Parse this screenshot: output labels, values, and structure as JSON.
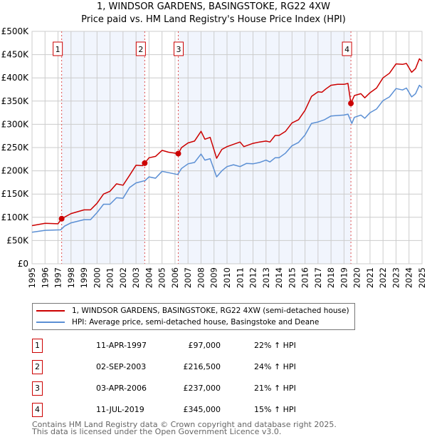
{
  "title": "1, WINDSOR GARDENS, BASINGSTOKE, RG22 4XW",
  "subtitle": "Price paid vs. HM Land Registry's House Price Index (HPI)",
  "chart_data": {
    "type": "line",
    "title": "1, WINDSOR GARDENS, BASINGSTOKE, RG22 4XW",
    "subtitle": "Price paid vs. HM Land Registry's House Price Index (HPI)",
    "xlim": [
      1995,
      2025
    ],
    "ylim": [
      0,
      500000
    ],
    "x_ticks": [
      "1995",
      "1996",
      "1997",
      "1998",
      "1999",
      "2000",
      "2001",
      "2002",
      "2003",
      "2004",
      "2005",
      "2006",
      "2007",
      "2008",
      "2009",
      "2010",
      "2011",
      "2012",
      "2013",
      "2014",
      "2015",
      "2016",
      "2017",
      "2018",
      "2019",
      "2020",
      "2021",
      "2022",
      "2023",
      "2024",
      "2025"
    ],
    "y_ticks": [
      {
        "v": 0,
        "label": "£0"
      },
      {
        "v": 50000,
        "label": "£50K"
      },
      {
        "v": 100000,
        "label": "£100K"
      },
      {
        "v": 150000,
        "label": "£150K"
      },
      {
        "v": 200000,
        "label": "£200K"
      },
      {
        "v": 250000,
        "label": "£250K"
      },
      {
        "v": 300000,
        "label": "£300K"
      },
      {
        "v": 350000,
        "label": "£350K"
      },
      {
        "v": 400000,
        "label": "£400K"
      },
      {
        "v": 450000,
        "label": "£450K"
      },
      {
        "v": 500000,
        "label": "£500K"
      }
    ],
    "grid": true,
    "series": [
      {
        "name": "1, WINDSOR GARDENS, BASINGSTOKE, RG22 4XW (semi-detached house)",
        "color": "#cc0000",
        "x": [
          1995,
          1996,
          1997,
          1997.28,
          1998,
          1999,
          1999.5,
          2000,
          2000.5,
          2001,
          2001.5,
          2002,
          2002.5,
          2003,
          2003.5,
          2003.67,
          2004,
          2004.5,
          2005,
          2005.5,
          2006.25,
          2006.5,
          2007,
          2007.5,
          2008,
          2008.3,
          2008.7,
          2009.2,
          2009.6,
          2010,
          2010.5,
          2011,
          2011.3,
          2012,
          2012.5,
          2013,
          2013.3,
          2013.7,
          2014,
          2014.5,
          2015,
          2015.5,
          2016,
          2016.5,
          2017,
          2017.3,
          2017.6,
          2018,
          2018.5,
          2019,
          2019.3,
          2019.53,
          2019.8,
          2020.3,
          2020.6,
          2021,
          2021.5,
          2022,
          2022.5,
          2023,
          2023.5,
          2023.8,
          2024.2,
          2024.5,
          2024.8,
          2025
        ],
        "y": [
          82000,
          87000,
          86000,
          97000,
          108000,
          116000,
          116000,
          130000,
          150000,
          156000,
          172000,
          169000,
          190000,
          212000,
          211000,
          216500,
          228000,
          231000,
          244000,
          240000,
          237000,
          250000,
          260000,
          264000,
          285000,
          268000,
          272000,
          227000,
          246000,
          252000,
          257000,
          262000,
          252000,
          259000,
          262000,
          264000,
          262000,
          276000,
          276000,
          285000,
          303000,
          310000,
          330000,
          360000,
          370000,
          369000,
          376000,
          384000,
          386000,
          386000,
          388000,
          345000,
          362000,
          366000,
          357000,
          368000,
          378000,
          400000,
          410000,
          430000,
          429000,
          431000,
          412000,
          420000,
          441000,
          436000
        ]
      },
      {
        "name": "HPI: Average price, semi-detached house, Basingstoke and Deane",
        "color": "#5b8fd4",
        "x": [
          1995,
          1996,
          1997.2,
          1997.5,
          1998,
          1999,
          1999.5,
          2000,
          2000.5,
          2001,
          2001.5,
          2002,
          2002.5,
          2003,
          2003.7,
          2004,
          2004.5,
          2005,
          2005.5,
          2006.2,
          2006.5,
          2007,
          2007.5,
          2008,
          2008.3,
          2008.7,
          2009.2,
          2009.6,
          2010,
          2010.5,
          2011,
          2011.5,
          2012,
          2012.5,
          2013,
          2013.3,
          2013.7,
          2014,
          2014.5,
          2015,
          2015.5,
          2016,
          2016.5,
          2017,
          2017.5,
          2018,
          2018.5,
          2019,
          2019.3,
          2019.6,
          2019.8,
          2020.3,
          2020.6,
          2021,
          2021.5,
          2022,
          2022.5,
          2023,
          2023.5,
          2023.8,
          2024.2,
          2024.5,
          2024.8,
          2025
        ],
        "y": [
          68000,
          72000,
          73000,
          81000,
          88000,
          95000,
          95000,
          110000,
          128000,
          128000,
          142000,
          141000,
          164000,
          174000,
          179000,
          187000,
          184000,
          199000,
          196000,
          192000,
          205000,
          215000,
          218000,
          236000,
          223000,
          226000,
          187000,
          200000,
          209000,
          213000,
          209000,
          216000,
          215000,
          218000,
          223000,
          219000,
          228000,
          228000,
          238000,
          254000,
          261000,
          277000,
          302000,
          305000,
          310000,
          318000,
          319000,
          320000,
          322000,
          302000,
          315000,
          320000,
          313000,
          325000,
          333000,
          351000,
          359000,
          377000,
          374000,
          378000,
          359000,
          366000,
          384000,
          379000
        ]
      }
    ],
    "sales": [
      {
        "num": "1",
        "x": 1997.28,
        "date": "11-APR-1997",
        "price": "£97,000",
        "value": 97000,
        "hpi": "22% ↑ HPI"
      },
      {
        "num": "2",
        "x": 2003.67,
        "date": "02-SEP-2003",
        "price": "£216,500",
        "value": 216500,
        "hpi": "24% ↑ HPI"
      },
      {
        "num": "3",
        "x": 2006.25,
        "date": "03-APR-2006",
        "price": "£237,000",
        "value": 237000,
        "hpi": "21% ↑ HPI"
      },
      {
        "num": "4",
        "x": 2019.53,
        "date": "11-JUL-2019",
        "price": "£345,000",
        "value": 345000,
        "hpi": "15% ↑ HPI"
      }
    ],
    "legend_placement": "bottom"
  },
  "footer": {
    "line1": "Contains HM Land Registry data © Crown copyright and database right 2025.",
    "line2": "This data is licensed under the Open Government Licence v3.0."
  }
}
